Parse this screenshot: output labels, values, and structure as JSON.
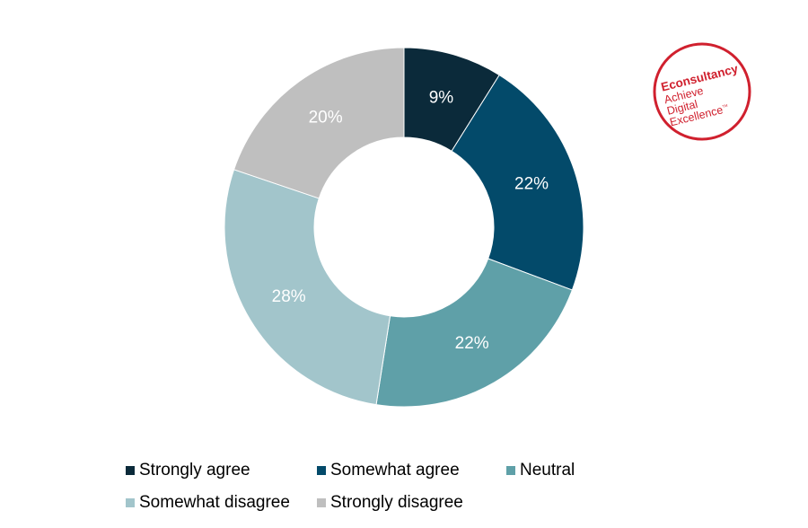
{
  "chart_data": {
    "type": "pie",
    "variant": "donut",
    "title": "",
    "categories": [
      "Strongly agree",
      "Somewhat agree",
      "Neutral",
      "Somewhat disagree",
      "Strongly disagree"
    ],
    "values": [
      9,
      22,
      22,
      28,
      20
    ],
    "value_labels": [
      "9%",
      "22%",
      "22%",
      "28%",
      "20%"
    ],
    "colors": [
      "#0b2a3a",
      "#034a6a",
      "#5fa0a8",
      "#a2c5cb",
      "#bfbfbf"
    ],
    "legend_position": "bottom"
  },
  "legend": {
    "items": [
      {
        "label": "Strongly agree"
      },
      {
        "label": "Somewhat agree"
      },
      {
        "label": "Neutral"
      },
      {
        "label": "Somewhat disagree"
      },
      {
        "label": "Strongly disagree"
      }
    ]
  },
  "logo": {
    "brand": "Econsultancy",
    "tagline": "Achieve Digital Excellence",
    "trademark": "TM",
    "color": "#d0202e"
  }
}
